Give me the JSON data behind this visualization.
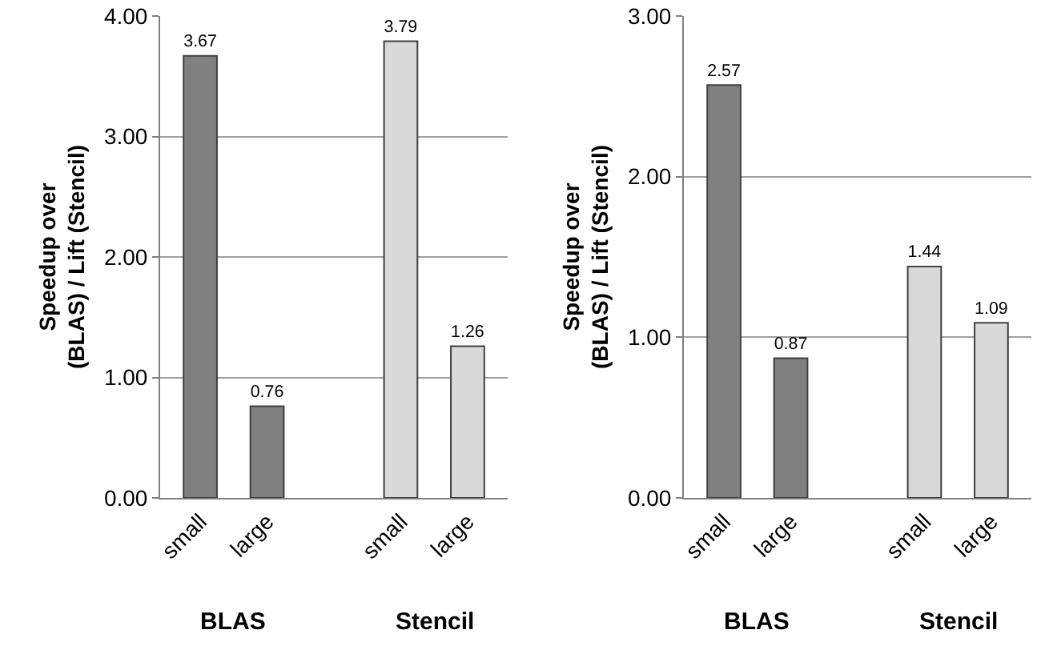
{
  "chart_data": [
    {
      "type": "bar",
      "ylabel": "Speedup over\n(BLAS) / Lift (Stencil)",
      "categories": [
        "small",
        "large",
        null,
        "small",
        "large"
      ],
      "values": [
        3.67,
        0.76,
        null,
        3.79,
        1.26
      ],
      "colors": [
        "#808080",
        "#808080",
        "#808080",
        "#d9d9d9",
        "#d9d9d9"
      ],
      "ylim": [
        0,
        4
      ],
      "yticks": [
        {
          "value": 0,
          "label": "0.00"
        },
        {
          "value": 1,
          "label": "1.00"
        },
        {
          "value": 2,
          "label": "2.00"
        },
        {
          "value": 3,
          "label": "3.00"
        },
        {
          "value": 4,
          "label": "4.00"
        }
      ],
      "grid": "y",
      "data_labels": true,
      "annotations": [
        "BLAS",
        "Stencil"
      ]
    },
    {
      "type": "bar",
      "ylabel": "Speedup over\n(BLAS) / Lift (Stencil)",
      "categories": [
        "small",
        "large",
        null,
        "small",
        "large"
      ],
      "values": [
        2.57,
        0.87,
        null,
        1.44,
        1.09
      ],
      "colors": [
        "#808080",
        "#808080",
        "#808080",
        "#d9d9d9",
        "#d9d9d9"
      ],
      "ylim": [
        0,
        3
      ],
      "yticks": [
        {
          "value": 0,
          "label": "0.00"
        },
        {
          "value": 1,
          "label": "1.00"
        },
        {
          "value": 2,
          "label": "2.00"
        },
        {
          "value": 3,
          "label": "3.00"
        }
      ],
      "grid": "y",
      "data_labels": true,
      "annotations": [
        "BLAS",
        "Stencil"
      ]
    }
  ]
}
